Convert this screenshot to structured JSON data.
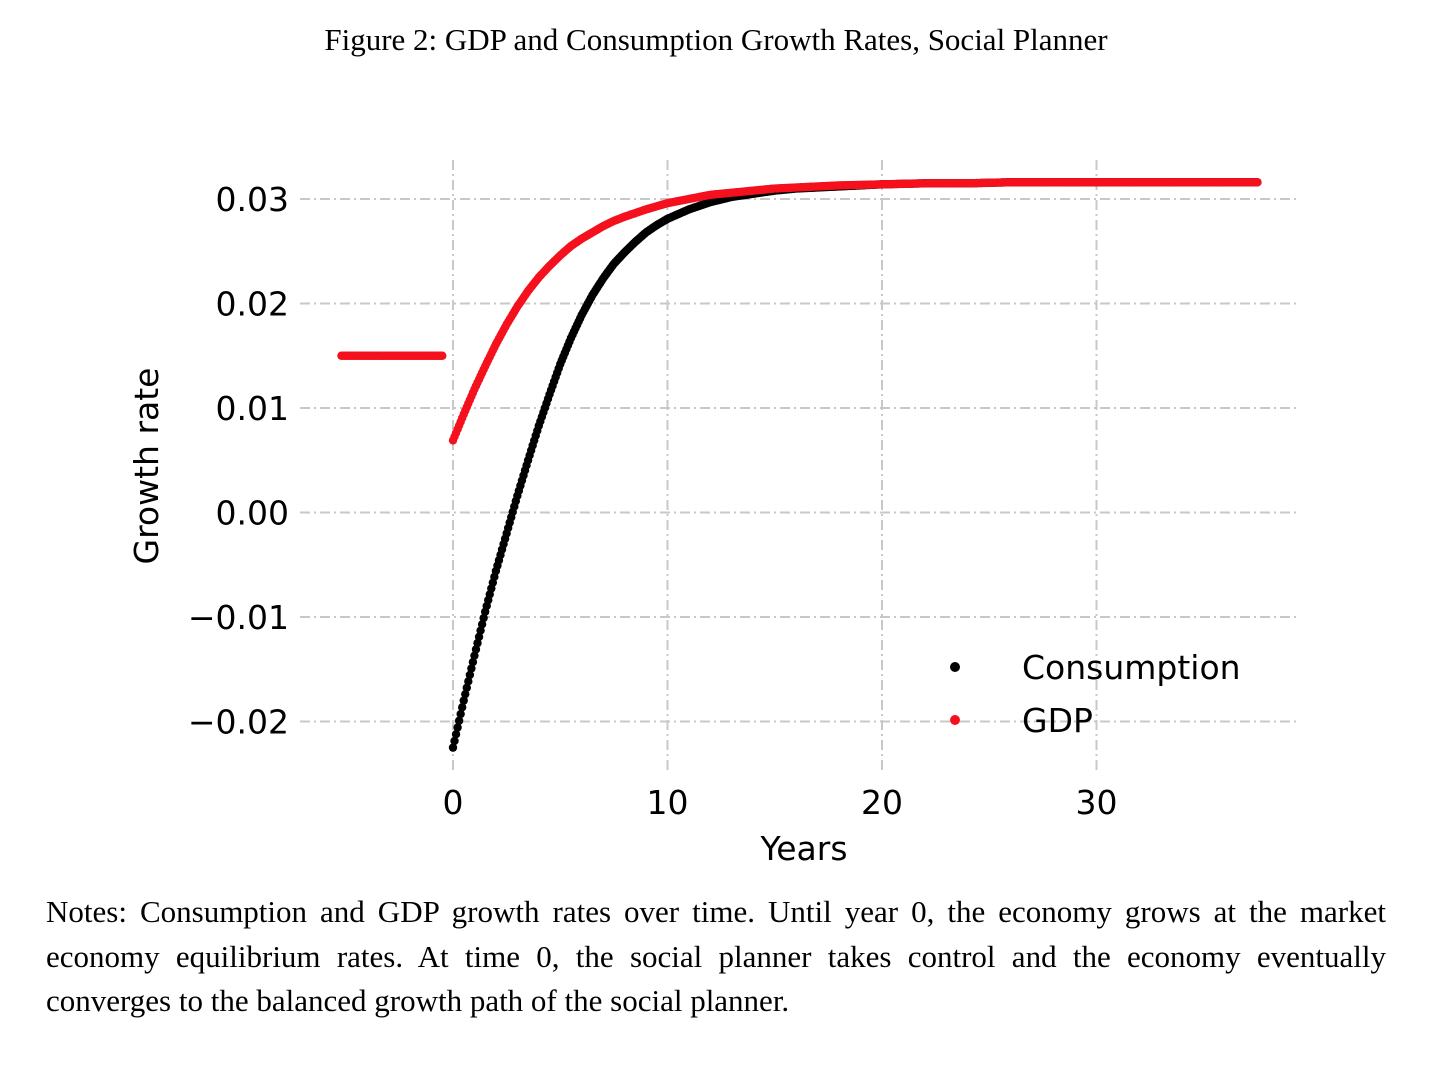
{
  "figure": {
    "title": "Figure 2: GDP and Consumption Growth Rates, Social Planner",
    "notes": "Notes: Consumption and GDP growth rates over time. Until year 0, the economy grows at the market economy equilibrium rates. At time 0, the social planner takes control and the economy eventually converges to the balanced growth path of the social planner."
  },
  "chart_data": {
    "type": "scatter",
    "title": "",
    "xlabel": "Years",
    "ylabel": "Growth rate",
    "xlim": [
      -5.2,
      39.5
    ],
    "ylim": [
      -0.0255,
      0.0355
    ],
    "xticks": [
      0,
      10,
      20,
      30
    ],
    "xtick_labels": [
      "0",
      "10",
      "20",
      "30"
    ],
    "yticks": [
      -0.02,
      -0.01,
      0.0,
      0.01,
      0.02,
      0.03
    ],
    "ytick_labels": [
      "−0.02",
      "−0.01",
      "0.00",
      "0.01",
      "0.02",
      "0.03"
    ],
    "grid": true,
    "grid_style": "dash-dot",
    "legend_position": "bottom-right",
    "series": [
      {
        "name": "Consumption",
        "color": "#000000",
        "x": [
          0,
          0.5,
          1,
          1.5,
          2,
          2.5,
          3,
          3.5,
          4,
          4.5,
          5,
          5.5,
          6,
          6.5,
          7,
          7.5,
          8,
          8.5,
          9,
          9.5,
          10,
          11,
          12,
          13,
          14,
          15,
          16,
          17,
          18,
          19,
          20,
          22,
          24,
          26,
          28,
          30,
          32,
          34,
          36,
          37.5
        ],
        "y": [
          -0.0225,
          -0.018,
          -0.0137,
          -0.0095,
          -0.0056,
          -0.002,
          0.0016,
          0.005,
          0.0083,
          0.0113,
          0.0142,
          0.0167,
          0.0189,
          0.0208,
          0.0224,
          0.0238,
          0.0249,
          0.0259,
          0.0268,
          0.0275,
          0.0281,
          0.029,
          0.0297,
          0.0302,
          0.0305,
          0.0308,
          0.031,
          0.0311,
          0.0312,
          0.0313,
          0.0314,
          0.0315,
          0.0315,
          0.0316,
          0.0316,
          0.0316,
          0.0316,
          0.0316,
          0.0316,
          0.0316
        ]
      },
      {
        "name": "GDP",
        "color": "#f5101e",
        "x": [
          -5.2,
          -4,
          -3,
          -2,
          -1,
          -0.5,
          0,
          0.5,
          1,
          1.5,
          2,
          2.5,
          3,
          3.5,
          4,
          4.5,
          5,
          5.5,
          6,
          6.5,
          7,
          7.5,
          8,
          9,
          10,
          11,
          12,
          13,
          14,
          15,
          16,
          18,
          20,
          22,
          24,
          26,
          28,
          30,
          32,
          34,
          36,
          37.5
        ],
        "y": [
          0.015,
          0.015,
          0.015,
          0.015,
          0.015,
          0.015,
          0.0069,
          0.0094,
          0.0118,
          0.014,
          0.0161,
          0.018,
          0.0197,
          0.0212,
          0.0225,
          0.0236,
          0.0246,
          0.0255,
          0.0262,
          0.0268,
          0.0274,
          0.0279,
          0.0283,
          0.029,
          0.0296,
          0.03,
          0.0304,
          0.0306,
          0.0308,
          0.031,
          0.0311,
          0.0313,
          0.0314,
          0.0315,
          0.0315,
          0.0316,
          0.0316,
          0.0316,
          0.0316,
          0.0316,
          0.0316,
          0.0316
        ]
      }
    ]
  }
}
